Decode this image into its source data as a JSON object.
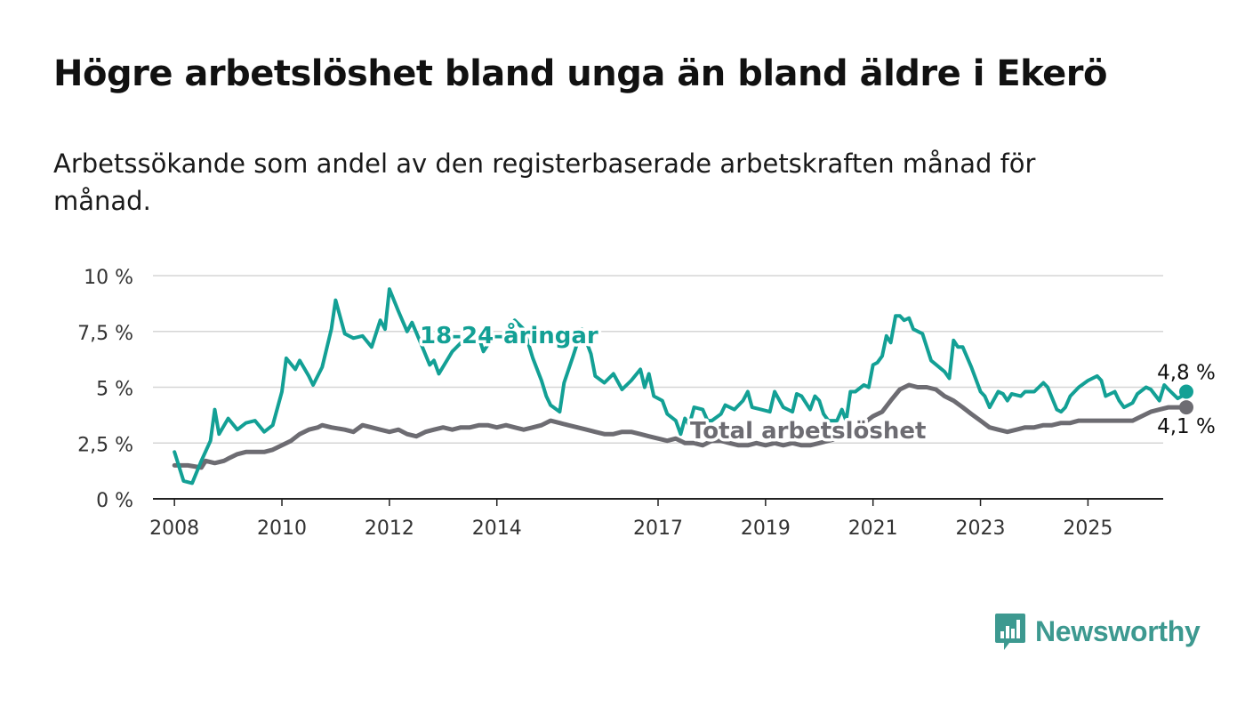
{
  "title": "Högre arbetslöshet bland unga än bland äldre i Ekerö",
  "subtitle": "Arbetssökande som andel av den registerbaserade arbetskraften månad för månad.",
  "brand": {
    "name": "Newsworthy",
    "icon": "bar-chart-speech-bubble-icon",
    "color": "#3d9990"
  },
  "colors": {
    "youth": "#13a095",
    "total": "#6d6c72",
    "grid": "#d6d6d6",
    "axis": "#222222"
  },
  "chart_data": {
    "type": "line",
    "x_unit": "year",
    "xlim": [
      2007.6,
      2026.4
    ],
    "ylim": [
      0,
      10
    ],
    "yticks": [
      0,
      2.5,
      5,
      7.5,
      10
    ],
    "ytick_labels": [
      "0 %",
      "2,5 %",
      "5 %",
      "7,5 %",
      "10 %"
    ],
    "xticks": [
      2008,
      2010,
      2012,
      2014,
      2017,
      2019,
      2021,
      2023,
      2025
    ],
    "xtick_labels": [
      "2008",
      "2010",
      "2012",
      "2014",
      "2017",
      "2019",
      "2021",
      "2023",
      "2025"
    ],
    "grid": true,
    "series": [
      {
        "name": "18-24-åringar",
        "key": "youth",
        "end_label": "4,8 %",
        "points": [
          [
            2008.0,
            2.1
          ],
          [
            2008.17,
            0.8
          ],
          [
            2008.33,
            0.7
          ],
          [
            2008.5,
            1.7
          ],
          [
            2008.67,
            2.6
          ],
          [
            2008.75,
            4.0
          ],
          [
            2008.83,
            2.9
          ],
          [
            2009.0,
            3.6
          ],
          [
            2009.17,
            3.1
          ],
          [
            2009.33,
            3.4
          ],
          [
            2009.5,
            3.5
          ],
          [
            2009.67,
            3.0
          ],
          [
            2009.83,
            3.3
          ],
          [
            2010.0,
            4.8
          ],
          [
            2010.08,
            6.3
          ],
          [
            2010.25,
            5.8
          ],
          [
            2010.33,
            6.2
          ],
          [
            2010.5,
            5.5
          ],
          [
            2010.58,
            5.1
          ],
          [
            2010.75,
            5.9
          ],
          [
            2010.92,
            7.6
          ],
          [
            2011.0,
            8.9
          ],
          [
            2011.17,
            7.4
          ],
          [
            2011.33,
            7.2
          ],
          [
            2011.5,
            7.3
          ],
          [
            2011.67,
            6.8
          ],
          [
            2011.83,
            8.0
          ],
          [
            2011.92,
            7.6
          ],
          [
            2012.0,
            9.4
          ],
          [
            2012.17,
            8.4
          ],
          [
            2012.33,
            7.5
          ],
          [
            2012.42,
            7.9
          ],
          [
            2012.58,
            7.0
          ],
          [
            2012.75,
            6.0
          ],
          [
            2012.83,
            6.2
          ],
          [
            2012.92,
            5.6
          ],
          [
            2013.17,
            6.6
          ],
          [
            2013.5,
            7.4
          ],
          [
            2013.67,
            7.2
          ],
          [
            2013.75,
            6.6
          ],
          [
            2013.83,
            6.9
          ],
          [
            2014.0,
            7.2
          ],
          [
            2014.17,
            7.5
          ],
          [
            2014.33,
            8.0
          ],
          [
            2014.5,
            7.6
          ],
          [
            2014.58,
            7.0
          ],
          [
            2014.67,
            6.3
          ],
          [
            2014.83,
            5.3
          ],
          [
            2014.92,
            4.6
          ],
          [
            2015.0,
            4.2
          ],
          [
            2015.17,
            3.9
          ],
          [
            2015.25,
            5.2
          ],
          [
            2015.42,
            6.4
          ],
          [
            2015.58,
            7.6
          ],
          [
            2015.75,
            6.5
          ],
          [
            2015.83,
            5.5
          ],
          [
            2016.0,
            5.2
          ],
          [
            2016.17,
            5.6
          ],
          [
            2016.33,
            4.9
          ],
          [
            2016.5,
            5.3
          ],
          [
            2016.67,
            5.8
          ],
          [
            2016.75,
            5.0
          ],
          [
            2016.83,
            5.6
          ],
          [
            2016.92,
            4.6
          ],
          [
            2017.08,
            4.4
          ],
          [
            2017.17,
            3.8
          ],
          [
            2017.33,
            3.5
          ],
          [
            2017.42,
            2.9
          ],
          [
            2017.5,
            3.6
          ],
          [
            2017.58,
            3.3
          ],
          [
            2017.67,
            4.1
          ],
          [
            2017.83,
            4.0
          ],
          [
            2017.92,
            3.5
          ],
          [
            2018.0,
            3.5
          ],
          [
            2018.17,
            3.8
          ],
          [
            2018.25,
            4.2
          ],
          [
            2018.42,
            4.0
          ],
          [
            2018.58,
            4.4
          ],
          [
            2018.67,
            4.8
          ],
          [
            2018.75,
            4.1
          ],
          [
            2018.92,
            4.0
          ],
          [
            2019.08,
            3.9
          ],
          [
            2019.17,
            4.8
          ],
          [
            2019.33,
            4.1
          ],
          [
            2019.5,
            3.9
          ],
          [
            2019.58,
            4.7
          ],
          [
            2019.67,
            4.6
          ],
          [
            2019.83,
            4.0
          ],
          [
            2019.92,
            4.6
          ],
          [
            2020.0,
            4.4
          ],
          [
            2020.08,
            3.8
          ],
          [
            2020.17,
            3.5
          ],
          [
            2020.25,
            3.5
          ],
          [
            2020.33,
            3.5
          ],
          [
            2020.42,
            4.0
          ],
          [
            2020.5,
            3.5
          ],
          [
            2020.58,
            4.8
          ],
          [
            2020.67,
            4.8
          ],
          [
            2020.83,
            5.1
          ],
          [
            2020.92,
            5.0
          ],
          [
            2021.0,
            6.0
          ],
          [
            2021.08,
            6.1
          ],
          [
            2021.17,
            6.4
          ],
          [
            2021.25,
            7.3
          ],
          [
            2021.33,
            7.0
          ],
          [
            2021.42,
            8.2
          ],
          [
            2021.5,
            8.2
          ],
          [
            2021.58,
            8.0
          ],
          [
            2021.67,
            8.1
          ],
          [
            2021.75,
            7.6
          ],
          [
            2021.92,
            7.4
          ],
          [
            2022.08,
            6.2
          ],
          [
            2022.33,
            5.7
          ],
          [
            2022.42,
            5.4
          ],
          [
            2022.5,
            7.1
          ],
          [
            2022.58,
            6.8
          ],
          [
            2022.67,
            6.8
          ],
          [
            2022.83,
            5.9
          ],
          [
            2023.0,
            4.8
          ],
          [
            2023.08,
            4.6
          ],
          [
            2023.17,
            4.1
          ],
          [
            2023.33,
            4.8
          ],
          [
            2023.42,
            4.7
          ],
          [
            2023.5,
            4.4
          ],
          [
            2023.58,
            4.7
          ],
          [
            2023.75,
            4.6
          ],
          [
            2023.83,
            4.8
          ],
          [
            2024.0,
            4.8
          ],
          [
            2024.17,
            5.2
          ],
          [
            2024.25,
            5.0
          ],
          [
            2024.42,
            4.0
          ],
          [
            2024.5,
            3.9
          ],
          [
            2024.58,
            4.1
          ],
          [
            2024.67,
            4.6
          ],
          [
            2024.83,
            5.0
          ],
          [
            2025.0,
            5.3
          ],
          [
            2025.17,
            5.5
          ],
          [
            2025.25,
            5.3
          ],
          [
            2025.33,
            4.6
          ],
          [
            2025.5,
            4.8
          ],
          [
            2025.58,
            4.4
          ],
          [
            2025.67,
            4.1
          ],
          [
            2025.83,
            4.3
          ],
          [
            2025.92,
            4.7
          ],
          [
            2026.08,
            5.0
          ],
          [
            2026.17,
            4.9
          ],
          [
            2026.33,
            4.4
          ],
          [
            2026.42,
            5.1
          ],
          [
            2026.5,
            4.9
          ],
          [
            2026.67,
            4.5
          ],
          [
            2026.75,
            4.6
          ],
          [
            2026.83,
            4.8
          ]
        ]
      },
      {
        "name": "Total arbetslöshet",
        "key": "total",
        "end_label": "4,1 %",
        "points": [
          [
            2008.0,
            1.5
          ],
          [
            2008.25,
            1.5
          ],
          [
            2008.5,
            1.4
          ],
          [
            2008.58,
            1.7
          ],
          [
            2008.75,
            1.6
          ],
          [
            2008.92,
            1.7
          ],
          [
            2009.0,
            1.8
          ],
          [
            2009.17,
            2.0
          ],
          [
            2009.33,
            2.1
          ],
          [
            2009.5,
            2.1
          ],
          [
            2009.67,
            2.1
          ],
          [
            2009.83,
            2.2
          ],
          [
            2010.0,
            2.4
          ],
          [
            2010.17,
            2.6
          ],
          [
            2010.33,
            2.9
          ],
          [
            2010.5,
            3.1
          ],
          [
            2010.67,
            3.2
          ],
          [
            2010.75,
            3.3
          ],
          [
            2010.92,
            3.2
          ],
          [
            2011.17,
            3.1
          ],
          [
            2011.33,
            3.0
          ],
          [
            2011.5,
            3.3
          ],
          [
            2011.67,
            3.2
          ],
          [
            2011.83,
            3.1
          ],
          [
            2012.0,
            3.0
          ],
          [
            2012.17,
            3.1
          ],
          [
            2012.33,
            2.9
          ],
          [
            2012.5,
            2.8
          ],
          [
            2012.67,
            3.0
          ],
          [
            2012.83,
            3.1
          ],
          [
            2013.0,
            3.2
          ],
          [
            2013.17,
            3.1
          ],
          [
            2013.33,
            3.2
          ],
          [
            2013.5,
            3.2
          ],
          [
            2013.67,
            3.3
          ],
          [
            2013.83,
            3.3
          ],
          [
            2014.0,
            3.2
          ],
          [
            2014.17,
            3.3
          ],
          [
            2014.33,
            3.2
          ],
          [
            2014.5,
            3.1
          ],
          [
            2014.67,
            3.2
          ],
          [
            2014.83,
            3.3
          ],
          [
            2015.0,
            3.5
          ],
          [
            2015.17,
            3.4
          ],
          [
            2015.33,
            3.3
          ],
          [
            2015.5,
            3.2
          ],
          [
            2015.67,
            3.1
          ],
          [
            2015.83,
            3.0
          ],
          [
            2016.0,
            2.9
          ],
          [
            2016.17,
            2.9
          ],
          [
            2016.33,
            3.0
          ],
          [
            2016.5,
            3.0
          ],
          [
            2016.67,
            2.9
          ],
          [
            2016.83,
            2.8
          ],
          [
            2017.0,
            2.7
          ],
          [
            2017.17,
            2.6
          ],
          [
            2017.33,
            2.7
          ],
          [
            2017.5,
            2.5
          ],
          [
            2017.67,
            2.5
          ],
          [
            2017.83,
            2.4
          ],
          [
            2018.0,
            2.6
          ],
          [
            2018.17,
            2.6
          ],
          [
            2018.33,
            2.5
          ],
          [
            2018.5,
            2.4
          ],
          [
            2018.67,
            2.4
          ],
          [
            2018.83,
            2.5
          ],
          [
            2019.0,
            2.4
          ],
          [
            2019.17,
            2.5
          ],
          [
            2019.33,
            2.4
          ],
          [
            2019.5,
            2.5
          ],
          [
            2019.67,
            2.4
          ],
          [
            2019.83,
            2.4
          ],
          [
            2020.0,
            2.5
          ],
          [
            2020.17,
            2.6
          ],
          [
            2020.33,
            2.7
          ],
          [
            2020.5,
            2.8
          ],
          [
            2020.67,
            3.0
          ],
          [
            2020.83,
            3.4
          ],
          [
            2021.0,
            3.7
          ],
          [
            2021.17,
            3.9
          ],
          [
            2021.33,
            4.4
          ],
          [
            2021.5,
            4.9
          ],
          [
            2021.67,
            5.1
          ],
          [
            2021.83,
            5.0
          ],
          [
            2022.0,
            5.0
          ],
          [
            2022.17,
            4.9
          ],
          [
            2022.33,
            4.6
          ],
          [
            2022.5,
            4.4
          ],
          [
            2022.67,
            4.1
          ],
          [
            2022.83,
            3.8
          ],
          [
            2023.0,
            3.5
          ],
          [
            2023.17,
            3.2
          ],
          [
            2023.33,
            3.1
          ],
          [
            2023.5,
            3.0
          ],
          [
            2023.67,
            3.1
          ],
          [
            2023.83,
            3.2
          ],
          [
            2024.0,
            3.2
          ],
          [
            2024.17,
            3.3
          ],
          [
            2024.33,
            3.3
          ],
          [
            2024.5,
            3.4
          ],
          [
            2024.67,
            3.4
          ],
          [
            2024.83,
            3.5
          ],
          [
            2025.0,
            3.5
          ],
          [
            2025.17,
            3.5
          ],
          [
            2025.33,
            3.5
          ],
          [
            2025.5,
            3.5
          ],
          [
            2025.67,
            3.5
          ],
          [
            2025.83,
            3.5
          ],
          [
            2026.0,
            3.7
          ],
          [
            2026.17,
            3.9
          ],
          [
            2026.33,
            4.0
          ],
          [
            2026.5,
            4.1
          ],
          [
            2026.67,
            4.1
          ],
          [
            2026.83,
            4.1
          ]
        ]
      }
    ]
  }
}
